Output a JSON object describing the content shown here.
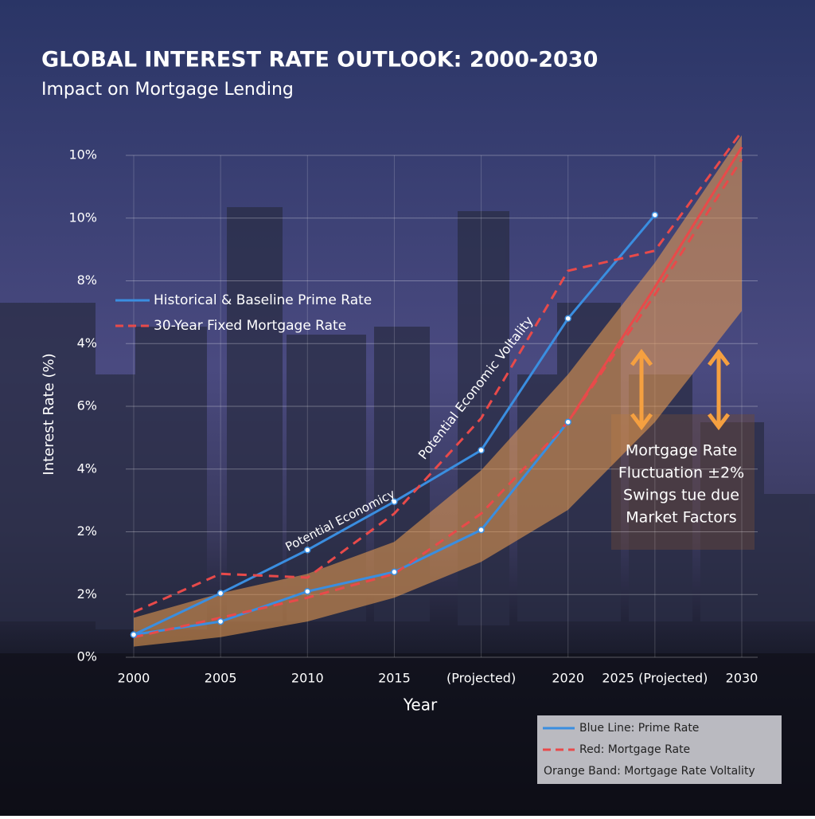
{
  "chart_data": {
    "type": "line",
    "title": "GLOBAL INTEREST RATE OUTLOOK: 2000-2030",
    "subtitle": "Impact on Mortgage Lending",
    "x_label": "Year",
    "y_label": "Interest Rate (%)",
    "categories": [
      "2000",
      "2005",
      "2010",
      "2015",
      "(Projected)",
      "2020",
      "2025 (Projected)",
      "2030"
    ],
    "y_categories": [
      "0%",
      "2%",
      "2%",
      "4%",
      "6%",
      "4%",
      "8%",
      "10%",
      "10%"
    ],
    "ylim": [
      0,
      8
    ],
    "grid": true,
    "legend": "left",
    "series": [
      {
        "name": "Historical & Baseline Prime Rate",
        "color": "#3a8ee0",
        "values": [
          0.36,
          1.02,
          1.71,
          2.48,
          3.3,
          5.4,
          7.05,
          null
        ]
      },
      {
        "name": "30-Year Fixed Mortgage Rate",
        "color": "#e84a4a",
        "dashed": true,
        "values": [
          0.72,
          1.33,
          1.27,
          2.29,
          3.81,
          6.16,
          6.48,
          8.38
        ]
      },
      {
        "color": "#3a8ee0",
        "values": [
          0.36,
          0.57,
          1.05,
          1.36,
          2.03,
          3.75,
          null,
          null
        ]
      },
      {
        "color": "#e84a4a",
        "dashed": true,
        "values": [
          0.32,
          0.63,
          0.95,
          1.33,
          2.29,
          3.75,
          5.78,
          7.94
        ]
      },
      {
        "color": "#e84a4a",
        "values": [
          null,
          null,
          null,
          null,
          null,
          3.75,
          5.9,
          8.13
        ]
      }
    ],
    "band": {
      "color": "#f0a050",
      "lower": [
        0.17,
        0.32,
        0.57,
        0.95,
        1.52,
        2.35,
        3.75,
        5.52
      ],
      "upper": [
        0.63,
        1.02,
        1.33,
        1.84,
        2.98,
        4.51,
        6.29,
        8.32
      ]
    },
    "annotations": [
      "Potential Economic Voltality",
      "Potential Economicy"
    ],
    "note_lines": [
      "Mortgage Rate",
      "Fluctuation ±2%",
      "Swings tue due",
      "Market Factors"
    ],
    "key": [
      {
        "text": "Blue Line: Prime Rate",
        "color": "#3a8ee0"
      },
      {
        "text": "Red: Mortgage Rate",
        "color": "#e84a4a",
        "dashed": true
      },
      {
        "text": "Orange Band: Mortgage Rate Voltality"
      }
    ]
  }
}
